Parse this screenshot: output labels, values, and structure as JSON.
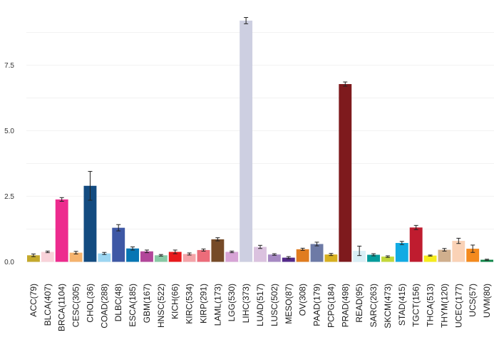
{
  "chart_data": {
    "type": "bar",
    "title": "",
    "xlabel": "",
    "ylabel": "",
    "ylim": [
      0,
      9.4
    ],
    "yticks": [
      0.0,
      2.5,
      5.0,
      7.5
    ],
    "ytick_labels": [
      "0.0",
      "2.5",
      "5.0",
      "7.5"
    ],
    "grid": true,
    "legend": "none",
    "error_bars": true,
    "categories": [
      "ACC(79)",
      "BLCA(407)",
      "BRCA(1104)",
      "CESC(305)",
      "CHOL(36)",
      "COAD(288)",
      "DLBC(48)",
      "ESCA(185)",
      "GBM(167)",
      "HNSC(522)",
      "KICH(66)",
      "KIRC(534)",
      "KIRP(291)",
      "LAML(173)",
      "LGG(530)",
      "LIHC(373)",
      "LUAD(517)",
      "LUSC(502)",
      "MESO(87)",
      "OV(308)",
      "PAAD(179)",
      "PCPG(184)",
      "PRAD(498)",
      "READ(95)",
      "SARC(263)",
      "SKCM(473)",
      "STAD(415)",
      "TGCT(156)",
      "THCA(513)",
      "THYM(120)",
      "UCEC(177)",
      "UCS(57)",
      "UVM(80)"
    ],
    "values": [
      0.25,
      0.38,
      2.38,
      0.35,
      2.9,
      0.32,
      1.3,
      0.51,
      0.4,
      0.25,
      0.38,
      0.3,
      0.45,
      0.86,
      0.38,
      9.2,
      0.57,
      0.28,
      0.16,
      0.48,
      0.68,
      0.28,
      6.78,
      0.42,
      0.27,
      0.2,
      0.72,
      1.31,
      0.24,
      0.46,
      0.8,
      0.5,
      0.08
    ],
    "errors": [
      0.05,
      0.03,
      0.07,
      0.05,
      0.55,
      0.04,
      0.12,
      0.06,
      0.05,
      0.03,
      0.07,
      0.04,
      0.04,
      0.06,
      0.03,
      0.12,
      0.06,
      0.03,
      0.04,
      0.04,
      0.07,
      0.04,
      0.08,
      0.18,
      0.04,
      0.03,
      0.06,
      0.08,
      0.02,
      0.05,
      0.1,
      0.14,
      0.02
    ],
    "colors": [
      "#c4a92c",
      "#f9d3da",
      "#ed2b8e",
      "#f5b36d",
      "#134b80",
      "#9cd6f2",
      "#3e58a5",
      "#0776b4",
      "#b2479a",
      "#88c9a5",
      "#e8191c",
      "#f4a3a8",
      "#ec6c7a",
      "#764b28",
      "#d7a4d6",
      "#cdcfe1",
      "#dbc2df",
      "#a689c3",
      "#542a8a",
      "#e07c1f",
      "#6d7aa6",
      "#d7b020",
      "#7e1a1d",
      "#d9eff6",
      "#049c9c",
      "#c3d83b",
      "#12abe3",
      "#bf1c2f",
      "#f6ec1c",
      "#d0af8d",
      "#fad2b6",
      "#f48a1e",
      "#11874a"
    ]
  }
}
